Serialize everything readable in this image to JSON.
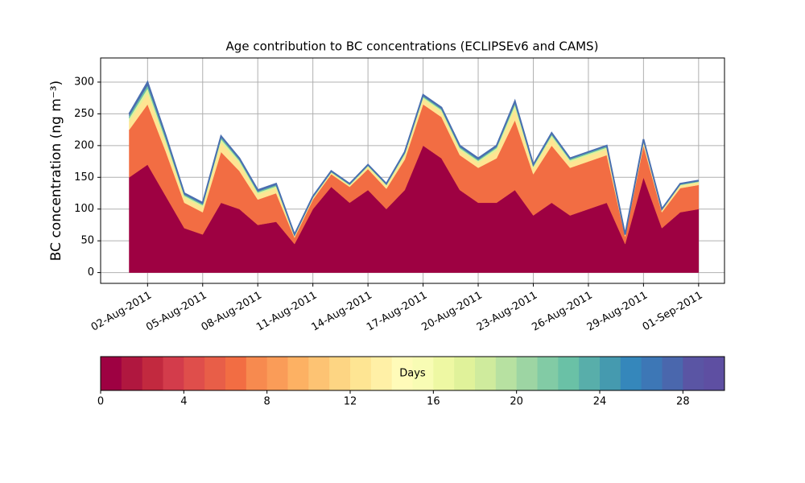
{
  "chart_data": {
    "type": "stackedarea",
    "title": "Age contribution to BC concentrations (ECLIPSEv6 and CAMS)",
    "y_label": "BC concentration (ng m⁻³)",
    "x": [
      "2011-08-01",
      "2011-08-02",
      "2011-08-03",
      "2011-08-04",
      "2011-08-05",
      "2011-08-06",
      "2011-08-07",
      "2011-08-08",
      "2011-08-09",
      "2011-08-10",
      "2011-08-11",
      "2011-08-12",
      "2011-08-13",
      "2011-08-14",
      "2011-08-15",
      "2011-08-16",
      "2011-08-17",
      "2011-08-18",
      "2011-08-19",
      "2011-08-20",
      "2011-08-21",
      "2011-08-22",
      "2011-08-23",
      "2011-08-24",
      "2011-08-25",
      "2011-08-26",
      "2011-08-27",
      "2011-08-28",
      "2011-08-29",
      "2011-08-30",
      "2011-08-31",
      "2011-09-01"
    ],
    "series": [
      {
        "color": "#9e0142",
        "values": [
          150,
          170,
          120,
          70,
          60,
          110,
          100,
          75,
          80,
          45,
          100,
          135,
          110,
          130,
          100,
          130,
          200,
          180,
          130,
          110,
          110,
          130,
          90,
          110,
          90,
          100,
          110,
          45,
          150,
          70,
          95,
          100
        ]
      },
      {
        "color": "#f26d43",
        "values": [
          75,
          95,
          70,
          40,
          35,
          80,
          60,
          40,
          45,
          10,
          15,
          20,
          25,
          33,
          32,
          48,
          65,
          65,
          55,
          55,
          70,
          110,
          65,
          90,
          75,
          75,
          75,
          12,
          50,
          25,
          38,
          38
        ]
      },
      {
        "color": "#fee593",
        "values": [
          13,
          18,
          13,
          8,
          8,
          15,
          12,
          8,
          8,
          2,
          2,
          2,
          2,
          3,
          4,
          6,
          8,
          8,
          8,
          8,
          12,
          18,
          9,
          12,
          9,
          9,
          9,
          1,
          5,
          3,
          4,
          4
        ]
      },
      {
        "color": "#e0f29a",
        "values": [
          5,
          7,
          5,
          3,
          3,
          5,
          4,
          3,
          3,
          1,
          1,
          1,
          1,
          2,
          2,
          3,
          3,
          3,
          3,
          3,
          4,
          6,
          3,
          4,
          3,
          3,
          3,
          1,
          2,
          1,
          1,
          1
        ]
      },
      {
        "color": "#6ac1a6",
        "values": [
          4,
          5,
          4,
          2,
          2,
          3,
          2,
          2,
          2,
          1,
          1,
          1,
          1,
          1,
          1,
          2,
          2,
          2,
          2,
          2,
          2,
          3,
          2,
          2,
          2,
          2,
          2,
          1,
          2,
          1,
          1,
          1
        ]
      },
      {
        "color": "#4a67ad",
        "values": [
          3,
          5,
          3,
          2,
          2,
          2,
          2,
          2,
          2,
          1,
          1,
          1,
          1,
          1,
          1,
          1,
          2,
          2,
          2,
          2,
          2,
          3,
          1,
          2,
          1,
          1,
          1,
          0,
          1,
          0,
          1,
          1
        ]
      }
    ],
    "xlim": [
      "2011-07-30T10:40Z",
      "2011-09-02T09:50Z"
    ],
    "xticks": [
      {
        "value": "2011-08-02",
        "label": "02-Aug-2011"
      },
      {
        "value": "2011-08-05",
        "label": "05-Aug-2011"
      },
      {
        "value": "2011-08-08",
        "label": "08-Aug-2011"
      },
      {
        "value": "2011-08-11",
        "label": "11-Aug-2011"
      },
      {
        "value": "2011-08-14",
        "label": "14-Aug-2011"
      },
      {
        "value": "2011-08-17",
        "label": "17-Aug-2011"
      },
      {
        "value": "2011-08-20",
        "label": "20-Aug-2011"
      },
      {
        "value": "2011-08-23",
        "label": "23-Aug-2011"
      },
      {
        "value": "2011-08-26",
        "label": "26-Aug-2011"
      },
      {
        "value": "2011-08-29",
        "label": "29-Aug-2011"
      },
      {
        "value": "2011-09-01",
        "label": "01-Sep-2011"
      }
    ],
    "ylim": [
      -17,
      338
    ],
    "yticks": [
      0,
      50,
      100,
      150,
      200,
      250,
      300
    ],
    "grid": true,
    "outline_color": "#4a6fb0",
    "colorbar": {
      "label": "Days",
      "lim": [
        0,
        30
      ],
      "ticks": [
        0,
        4,
        8,
        12,
        16,
        20,
        24,
        28
      ],
      "colors": [
        "#9e0142",
        "#b0173f",
        "#c2293f",
        "#d33c4b",
        "#df4e4b",
        "#e85e48",
        "#f26d43",
        "#f78a4f",
        "#fa9c58",
        "#fdb163",
        "#fdc373",
        "#fdd583",
        "#fee593",
        "#fff0a6",
        "#fffbb9",
        "#f8fcb4",
        "#eef8a3",
        "#e0f29a",
        "#cfeb9d",
        "#b7e1a1",
        "#9dd5a3",
        "#82cba5",
        "#6ac1a6",
        "#58aeaa",
        "#459aaf",
        "#3587bb",
        "#3d77b6",
        "#4a67ad",
        "#5a55a4",
        "#5e4fa2"
      ]
    }
  }
}
